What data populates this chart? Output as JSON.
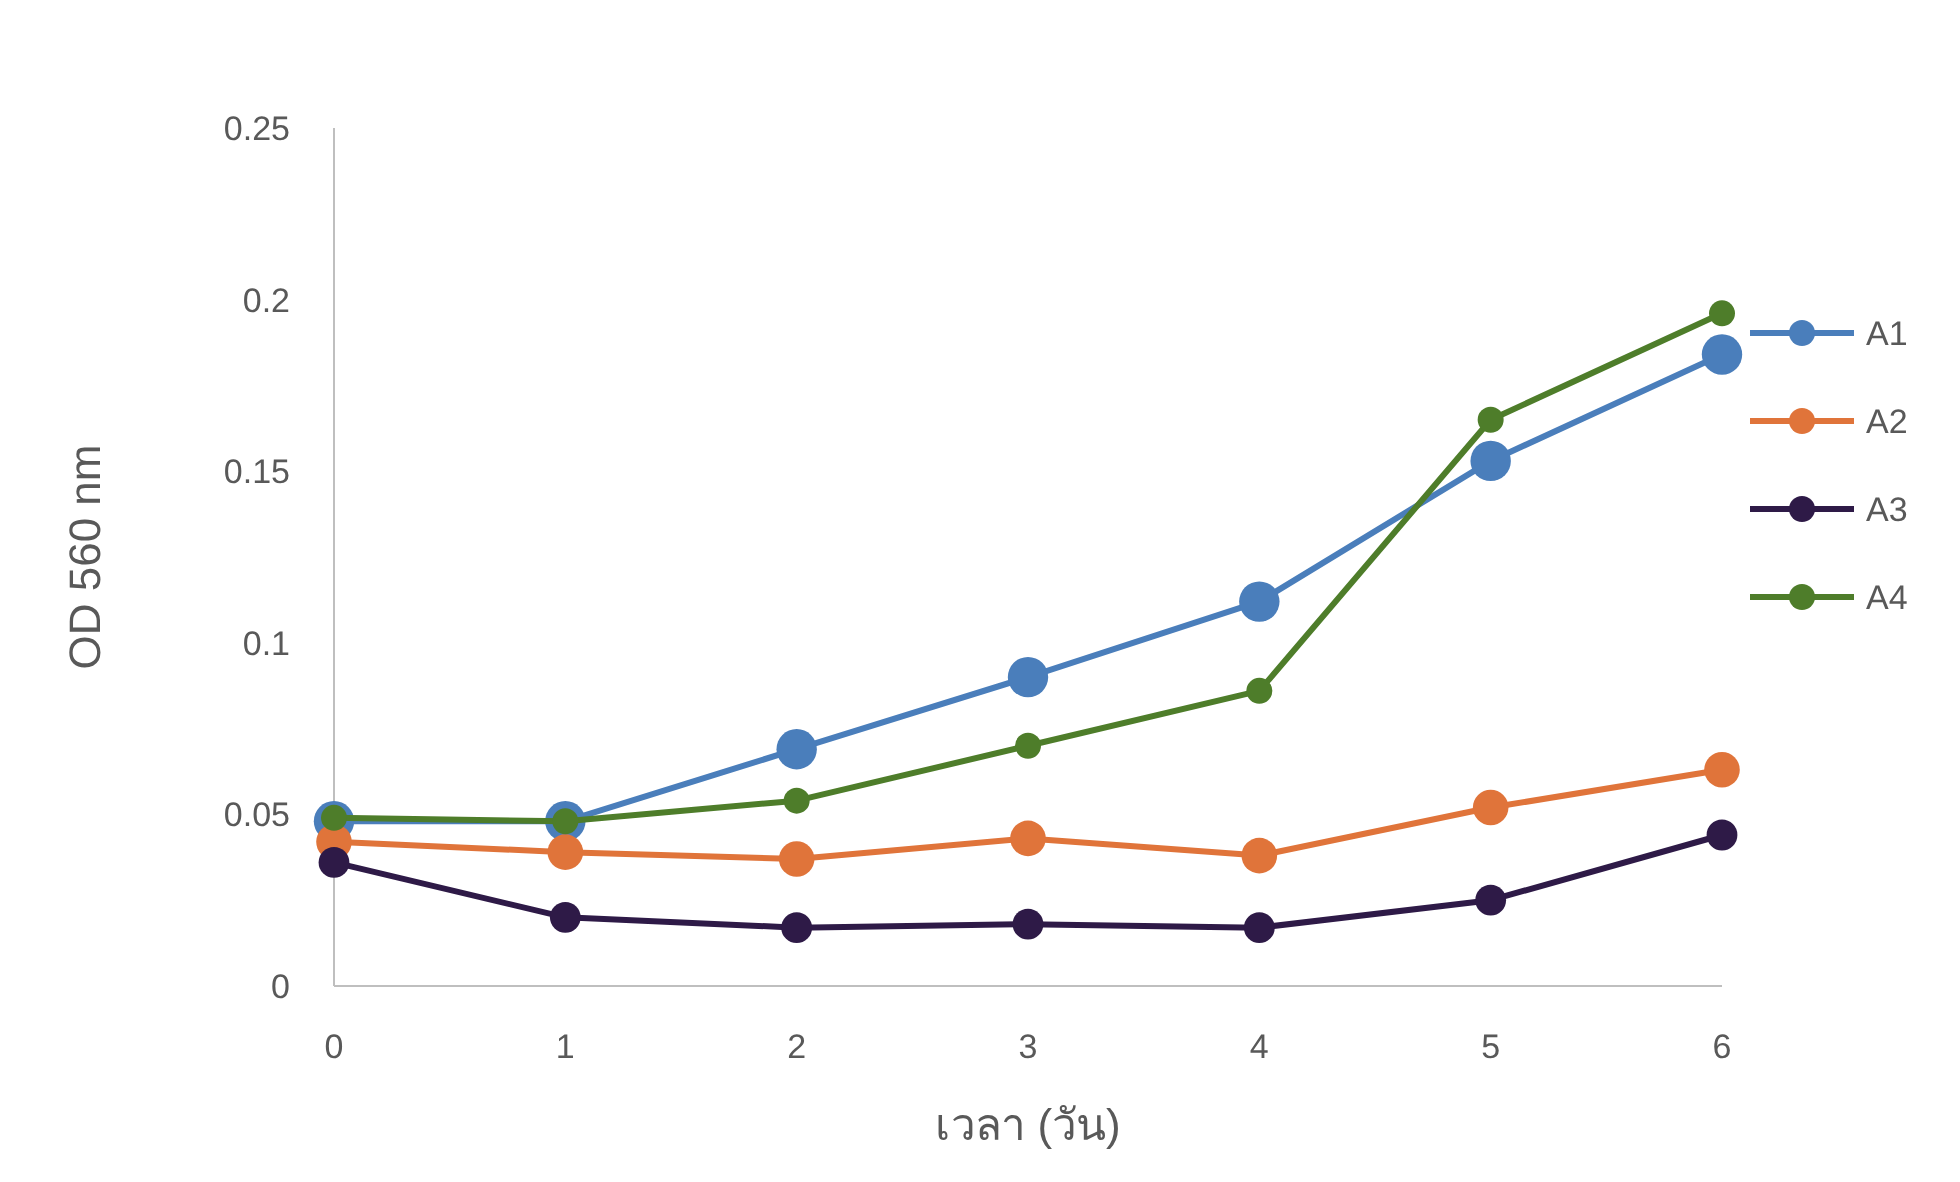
{
  "chart_data": {
    "type": "line",
    "xlabel": "เวลา (วัน)",
    "ylabel": "OD 560 nm",
    "x": [
      0,
      1,
      2,
      3,
      4,
      5,
      6
    ],
    "series": [
      {
        "name": "A1",
        "color": "#4a7ebb",
        "values": [
          0.048,
          0.048,
          0.069,
          0.09,
          0.112,
          0.153,
          0.184
        ]
      },
      {
        "name": "A2",
        "color": "#e0743a",
        "values": [
          0.042,
          0.039,
          0.037,
          0.043,
          0.038,
          0.052,
          0.063
        ]
      },
      {
        "name": "A3",
        "color": "#2e1a47",
        "values": [
          0.036,
          0.02,
          0.017,
          0.018,
          0.017,
          0.025,
          0.044
        ]
      },
      {
        "name": "A4",
        "color": "#4e7d2a",
        "values": [
          0.049,
          0.048,
          0.054,
          0.07,
          0.086,
          0.165,
          0.196
        ]
      }
    ],
    "xlim": [
      0,
      6
    ],
    "ylim": [
      0,
      0.25
    ],
    "xticks": [
      0,
      1,
      2,
      3,
      4,
      5,
      6
    ],
    "yticks": [
      0,
      0.05,
      0.1,
      0.15,
      0.2,
      0.25
    ],
    "legend": "right",
    "marker": "circle",
    "line_style": "solid"
  }
}
